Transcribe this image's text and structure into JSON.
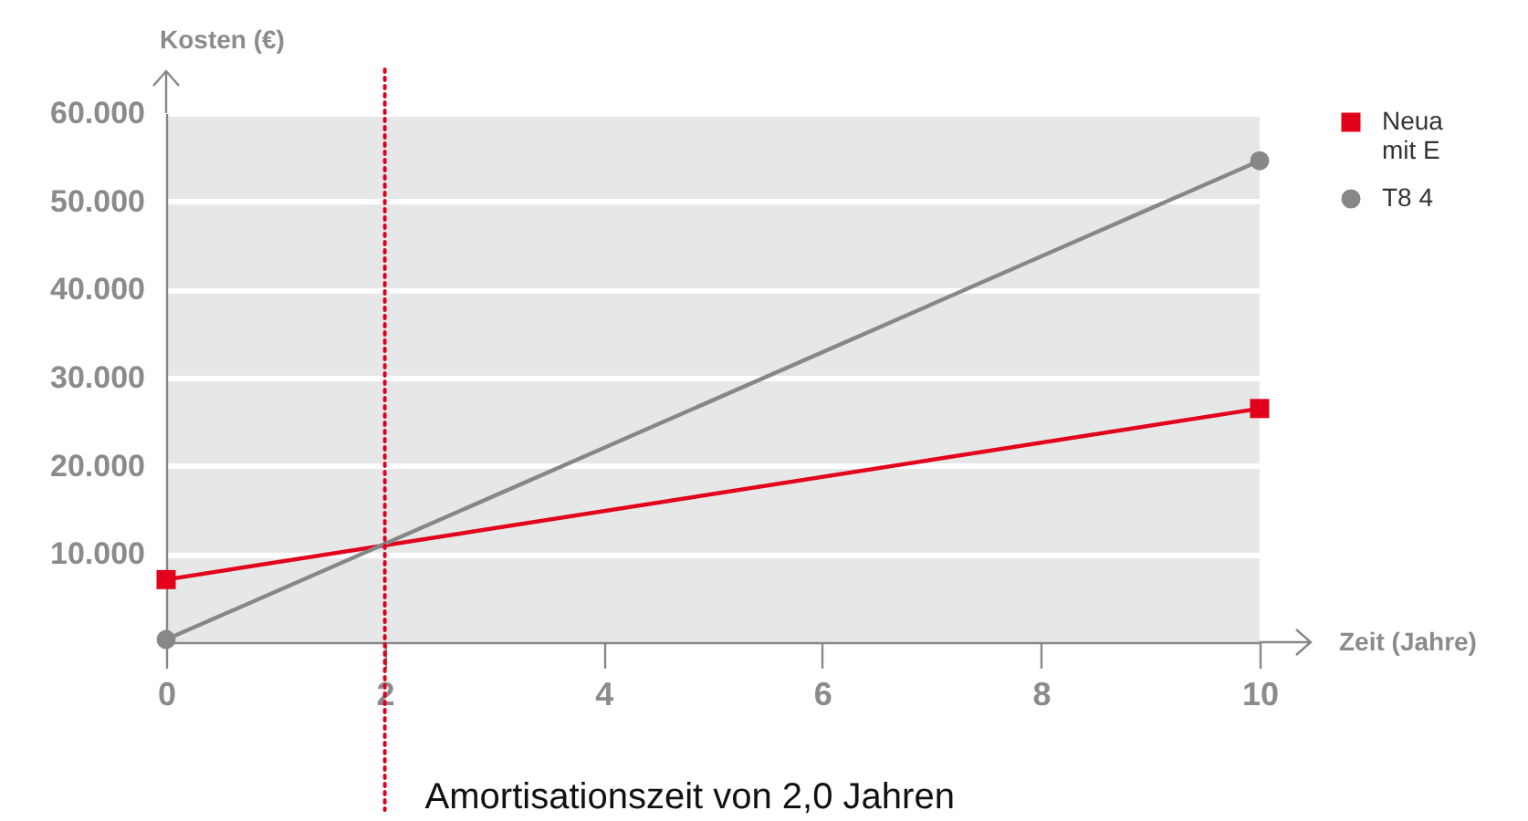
{
  "chart_data": {
    "type": "line",
    "ylabel": "Kosten (€)",
    "xlabel": "Zeit (Jahre)",
    "x": [
      0,
      10
    ],
    "series": [
      {
        "name": "Neua\nmit E",
        "color": "#e2001a",
        "marker": "square",
        "values": [
          7100,
          26500
        ]
      },
      {
        "name": "T8 4",
        "color": "#858789",
        "marker": "circle",
        "values": [
          300,
          54600
        ]
      }
    ],
    "xlim": [
      0,
      10
    ],
    "xticks": [
      0,
      2,
      4,
      6,
      8,
      10
    ],
    "ylim": [
      0,
      60000
    ],
    "yticks": [
      {
        "value": 10000,
        "label": "10.000"
      },
      {
        "value": 20000,
        "label": "20.000"
      },
      {
        "value": 30000,
        "label": "30.000"
      },
      {
        "value": 40000,
        "label": "40.000"
      },
      {
        "value": 50000,
        "label": "50.000"
      },
      {
        "value": 60000,
        "label": "60.000"
      }
    ],
    "grid": "y",
    "legend": "right",
    "line_style": "solid",
    "ref_lines": [
      {
        "axis": "x",
        "value": 2,
        "color": "#e2001a",
        "line_style": "dotted"
      }
    ],
    "annotations": [
      "Amortisationszeit von 2,0 Jahren"
    ]
  }
}
